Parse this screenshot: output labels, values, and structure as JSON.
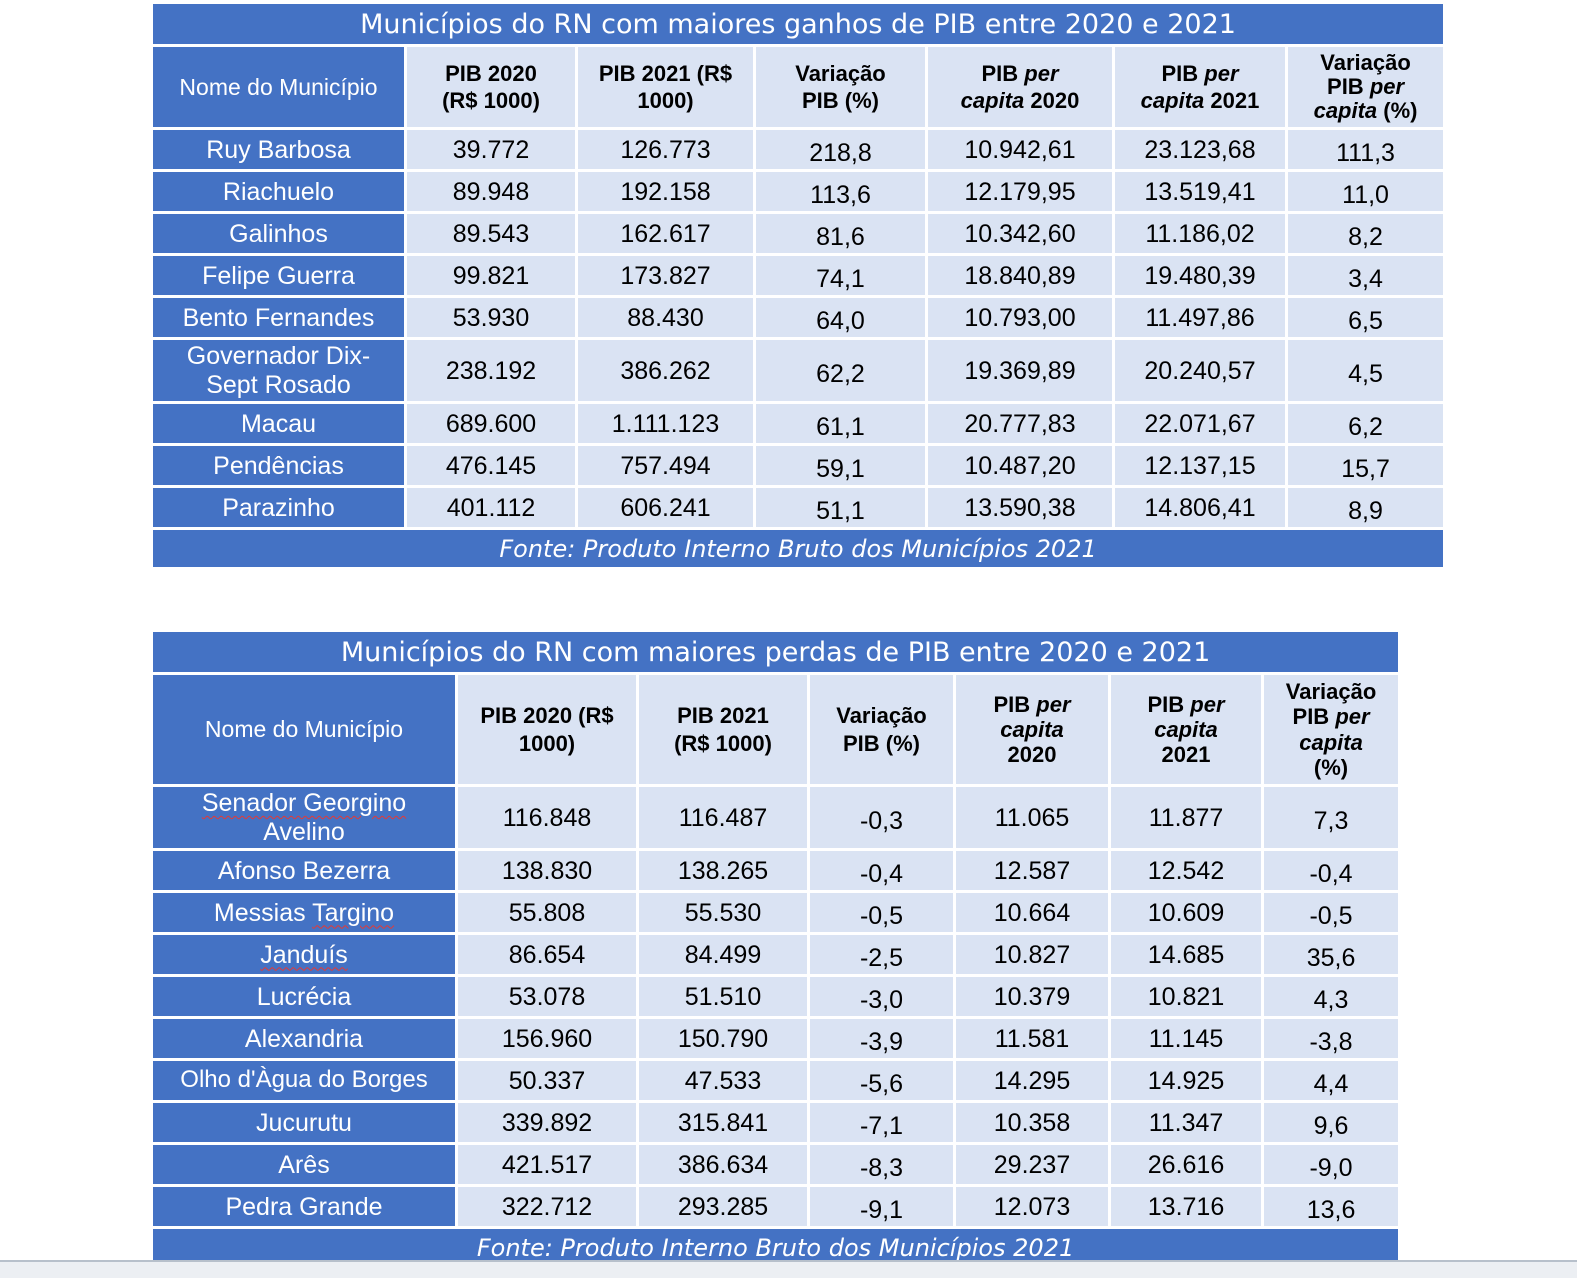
{
  "table_gains": {
    "title": "Municípios  do RN com maiores ganhos de PIB entre 2020 e 2021",
    "header": {
      "name": "Nome do Município",
      "pib2020_l1": "PIB 2020",
      "pib2020_l2": "(R$ 1000)",
      "pib2021_l1": "PIB 2021 (R$",
      "pib2021_l2": "1000)",
      "var_l1": "Variação",
      "var_l2": "PIB (%)",
      "pc2020_a": "PIB ",
      "pc2020_b": "per",
      "pc2020_c": "capita",
      "pc2020_d": " 2020",
      "pc2021_a": "PIB ",
      "pc2021_b": "per",
      "pc2021_c": "capita",
      "pc2021_d": " 2021",
      "varpc_a": "Variação",
      "varpc_b": "PIB ",
      "varpc_c": "per",
      "varpc_d": "capita",
      "varpc_e": " (%)"
    },
    "rows": [
      {
        "name": "Ruy Barbosa",
        "pib2020": "39.772",
        "pib2021": "126.773",
        "var": "218,8",
        "pc2020": "10.942,61",
        "pc2021": "23.123,68",
        "varpc": "111,3"
      },
      {
        "name": "Riachuelo",
        "pib2020": "89.948",
        "pib2021": "192.158",
        "var": "113,6",
        "pc2020": "12.179,95",
        "pc2021": "13.519,41",
        "varpc": "11,0"
      },
      {
        "name": "Galinhos",
        "pib2020": "89.543",
        "pib2021": "162.617",
        "var": "81,6",
        "pc2020": "10.342,60",
        "pc2021": "11.186,02",
        "varpc": "8,2"
      },
      {
        "name": "Felipe Guerra",
        "pib2020": "99.821",
        "pib2021": "173.827",
        "var": "74,1",
        "pc2020": "18.840,89",
        "pc2021": "19.480,39",
        "varpc": "3,4"
      },
      {
        "name": "Bento Fernandes",
        "pib2020": "53.930",
        "pib2021": "88.430",
        "var": "64,0",
        "pc2020": "10.793,00",
        "pc2021": "11.497,86",
        "varpc": "6,5"
      },
      {
        "name_l1": "Governador Dix-",
        "name_l2": "Sept Rosado",
        "pib2020": "238.192",
        "pib2021": "386.262",
        "var": "62,2",
        "pc2020": "19.369,89",
        "pc2021": "20.240,57",
        "varpc": "4,5"
      },
      {
        "name": "Macau",
        "pib2020": "689.600",
        "pib2021": "1.111.123",
        "var": "61,1",
        "pc2020": "20.777,83",
        "pc2021": "22.071,67",
        "varpc": "6,2"
      },
      {
        "name": "Pendências",
        "pib2020": "476.145",
        "pib2021": "757.494",
        "var": "59,1",
        "pc2020": "10.487,20",
        "pc2021": "12.137,15",
        "varpc": "15,7"
      },
      {
        "name": "Parazinho",
        "pib2020": "401.112",
        "pib2021": "606.241",
        "var": "51,1",
        "pc2020": "13.590,38",
        "pc2021": "14.806,41",
        "varpc": "8,9"
      }
    ],
    "source": "Fonte: Produto Interno Bruto dos Municípios 2021"
  },
  "table_losses": {
    "title": "Municípios  do RN com maiores perdas de PIB entre 2020 e 2021",
    "header": {
      "name": "Nome do Município",
      "pib2020_l1": "PIB 2020 (R$",
      "pib2020_l2": "1000)",
      "pib2021_l1": "PIB 2021",
      "pib2021_l2": "(R$ 1000)",
      "var_l1": "Variação",
      "var_l2": "PIB (%)",
      "pc2020_a": "PIB ",
      "pc2020_b": "per",
      "pc2020_c": "capita",
      "pc2020_d": "2020",
      "pc2021_a": "PIB ",
      "pc2021_b": "per",
      "pc2021_c": "capita",
      "pc2021_d": "2021",
      "varpc_a": "Variação",
      "varpc_b": "PIB ",
      "varpc_c": "per",
      "varpc_d": "capita",
      "varpc_e": "(%)"
    },
    "rows": [
      {
        "name_l1": "Senador Georgino",
        "name_l2": "Avelino",
        "pib2020": "116.848",
        "pib2021": "116.487",
        "var": "-0,3",
        "pc2020": "11.065",
        "pc2021": "11.877",
        "varpc": "7,3"
      },
      {
        "name": "Afonso Bezerra",
        "pib2020": "138.830",
        "pib2021": "138.265",
        "var": "-0,4",
        "pc2020": "12.587",
        "pc2021": "12.542",
        "varpc": "-0,4"
      },
      {
        "name_a": "Messias ",
        "name_b": "Targino",
        "pib2020": "55.808",
        "pib2021": "55.530",
        "var": "-0,5",
        "pc2020": "10.664",
        "pc2021": "10.609",
        "varpc": "-0,5"
      },
      {
        "name": "Janduís",
        "pib2020": "86.654",
        "pib2021": "84.499",
        "var": "-2,5",
        "pc2020": "10.827",
        "pc2021": "14.685",
        "varpc": "35,6"
      },
      {
        "name": "Lucrécia",
        "pib2020": "53.078",
        "pib2021": "51.510",
        "var": "-3,0",
        "pc2020": "10.379",
        "pc2021": "10.821",
        "varpc": "4,3"
      },
      {
        "name": "Alexandria",
        "pib2020": "156.960",
        "pib2021": "150.790",
        "var": "-3,9",
        "pc2020": "11.581",
        "pc2021": "11.145",
        "varpc": "-3,8"
      },
      {
        "name": "Olho d'Àgua do Borges",
        "pib2020": "50.337",
        "pib2021": "47.533",
        "var": "-5,6",
        "pc2020": "14.295",
        "pc2021": "14.925",
        "varpc": "4,4"
      },
      {
        "name": "Jucurutu",
        "pib2020": "339.892",
        "pib2021": "315.841",
        "var": "-7,1",
        "pc2020": "10.358",
        "pc2021": "11.347",
        "varpc": "9,6"
      },
      {
        "name": "Arês",
        "pib2020": "421.517",
        "pib2021": "386.634",
        "var": "-8,3",
        "pc2020": "29.237",
        "pc2021": "26.616",
        "varpc": "-9,0"
      },
      {
        "name": "Pedra Grande",
        "pib2020": "322.712",
        "pib2021": "293.285",
        "var": "-9,1",
        "pc2020": "12.073",
        "pc2021": "13.716",
        "varpc": "13,6"
      }
    ],
    "source": "Fonte: Produto Interno Bruto dos Municípios 2021"
  }
}
